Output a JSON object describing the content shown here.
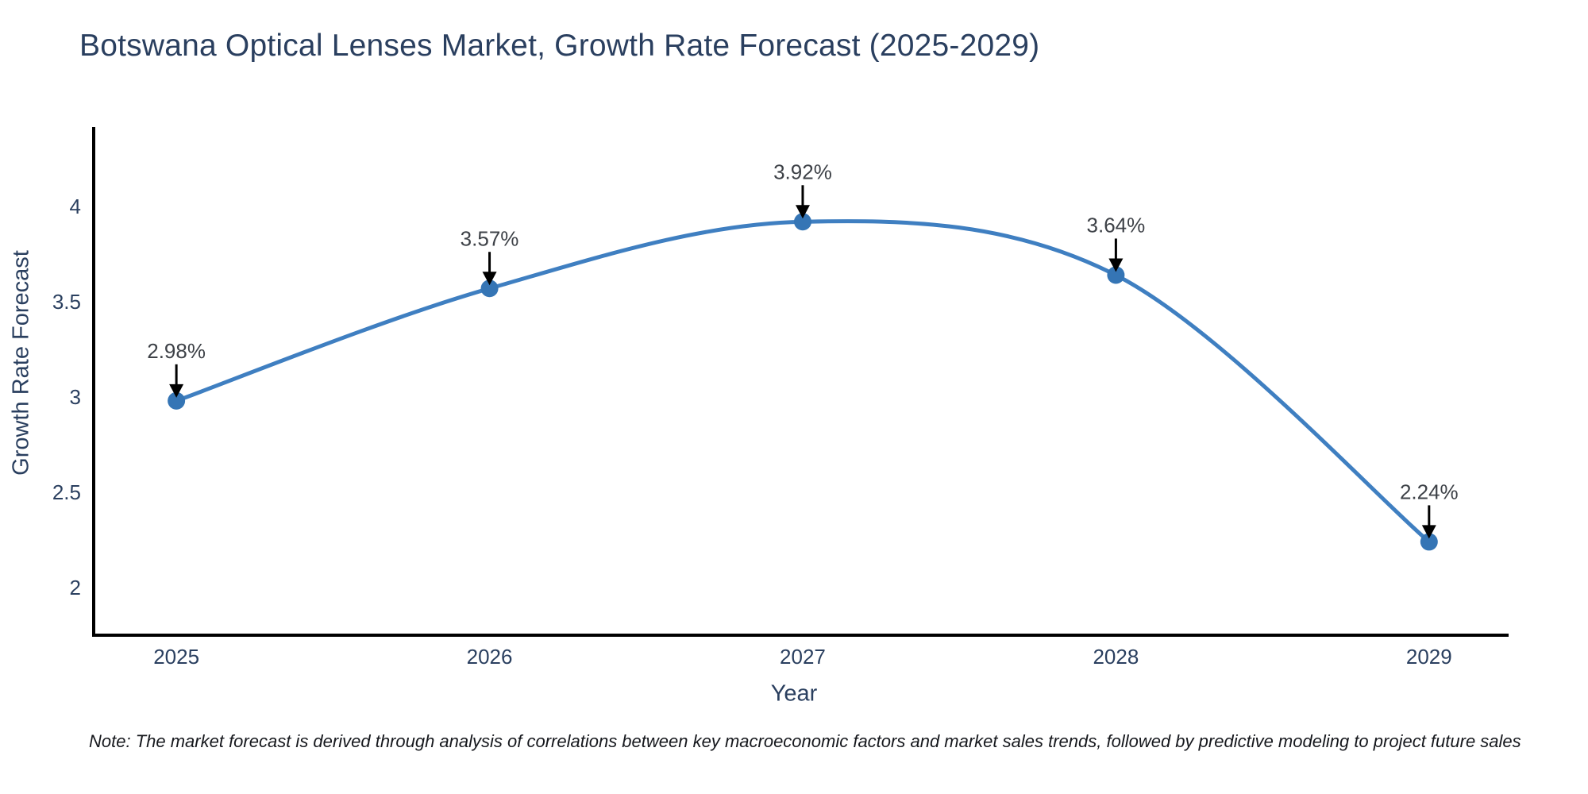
{
  "page": {
    "background": "#ffffff"
  },
  "chart": {
    "title": "Botswana Optical Lenses Market, Growth Rate Forecast (2025-2029)",
    "xlabel": "Year",
    "ylabel": "Growth Rate Forecast"
  },
  "chart_data": {
    "type": "line",
    "title": "Botswana Optical Lenses Market, Growth Rate Forecast (2025-2029)",
    "xlabel": "Year",
    "ylabel": "Growth Rate Forecast",
    "x": [
      2025,
      2026,
      2027,
      2028,
      2029
    ],
    "series": [
      {
        "name": "Growth Rate Forecast",
        "values": [
          2.98,
          3.57,
          3.92,
          3.64,
          2.24
        ]
      }
    ],
    "point_labels": [
      "2.98%",
      "3.57%",
      "3.92%",
      "3.64%",
      "2.24%"
    ],
    "xticks": [
      2025,
      2026,
      2027,
      2028,
      2029
    ],
    "yticks": [
      2,
      2.5,
      3,
      3.5,
      4
    ],
    "xlim": [
      2024.736,
      2029.254
    ],
    "ylim": [
      1.75,
      4.417
    ],
    "grid": false,
    "legend": false,
    "line_shape": "spline",
    "colors": {
      "line": "#3f7fc1",
      "marker": "#3575b5",
      "arrow": "#000000",
      "axis": "#000000",
      "tick_label": "#2a3f5f",
      "title": "#2a3f5f",
      "annotation_text": "#3d4147",
      "note_text": "#16181d"
    }
  },
  "note": {
    "text": "Note: The market forecast is derived through analysis of correlations between key macroeconomic factors and market sales trends, followed by predictive modeling to project future sales"
  }
}
